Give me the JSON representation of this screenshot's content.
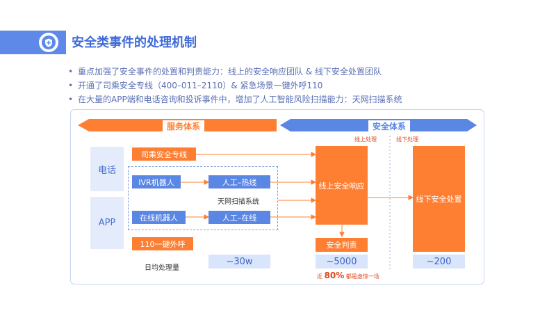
{
  "title": "安全类事件的处理机制",
  "bullets": [
    "重点加强了安全事件的处置和判责能力：线上的安全响应团队 & 线下安全处置团队",
    "开通了司乘安全专线（400–011–2110）& 紧急场景一键外呼110",
    "在大量的APP端和电话咨询和投诉事件中，增加了人工智能风险扫描能力：天网扫描系统"
  ],
  "diagram": {
    "service_header": "服务体系",
    "security_header": "安全体系",
    "online_label": "线上处理",
    "offline_label": "线下处理",
    "phone_label": "电话",
    "app_label": "APP",
    "hotline": "司乘安全专线",
    "ivr_robot": "IVR机器人",
    "manual_hotline": "人工–热线",
    "online_robot": "在线机器人",
    "manual_online": "人工–在线",
    "scan_system": "天网扫描系统",
    "one_key_call": "110一键外呼",
    "daily_volume_label": "日均处理量",
    "volume_service": "~30w",
    "online_response": "线上安全响应",
    "safety_judgment": "安全判责",
    "volume_online": "~5000",
    "false_alarm_prefix": "近",
    "false_alarm_pct": "80%",
    "false_alarm_suffix": "都是虚惊一场",
    "offline_handling": "线下安全处置",
    "volume_offline": "~200"
  },
  "colors": {
    "accent_blue": "#5f89e8",
    "accent_orange": "#ff7f32",
    "light_blue": "#e4ecfb"
  },
  "icons": {
    "title_icon": "shield-icon"
  }
}
